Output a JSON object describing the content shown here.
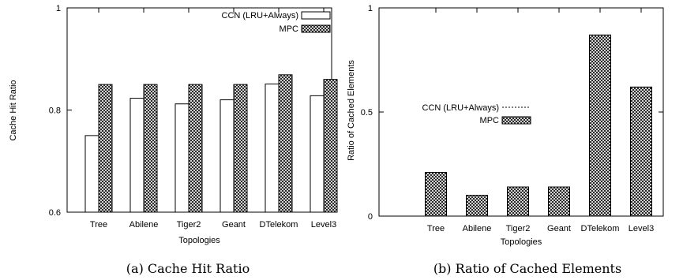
{
  "colors": {
    "axis": "#000000",
    "bar_fill": "#ffffff",
    "hatch": "#000000"
  },
  "chart_data": [
    {
      "type": "bar",
      "caption": "(a) Cache Hit Ratio",
      "xlabel": "Topologies",
      "ylabel": "Cache Hit Ratio",
      "categories": [
        "Tree",
        "Abilene",
        "Tiger2",
        "Geant",
        "DTelekom",
        "Level3"
      ],
      "ylim": [
        0.6,
        1
      ],
      "yticks": [
        0.6,
        0.8,
        1
      ],
      "ytick_labels": [
        "0.6",
        "0.8",
        "1"
      ],
      "legend_position": "top-right",
      "series": [
        {
          "name": "CCN (LRU+Always)",
          "style": "white",
          "values": [
            0.75,
            0.823,
            0.812,
            0.82,
            0.851,
            0.828
          ]
        },
        {
          "name": "MPC",
          "style": "hatched",
          "values": [
            0.85,
            0.85,
            0.85,
            0.85,
            0.869,
            0.86
          ]
        }
      ]
    },
    {
      "type": "bar",
      "caption": "(b) Ratio of Cached Elements",
      "xlabel": "Topologies",
      "ylabel": "Ratio of Cached Elements",
      "categories": [
        "Tree",
        "Abilene",
        "Tiger2",
        "Geant",
        "DTelekom",
        "Level3"
      ],
      "ylim": [
        0,
        1.0
      ],
      "yticks": [
        0,
        0.5,
        1
      ],
      "ytick_labels": [
        "0",
        "0.5",
        "1"
      ],
      "legend_position": "center-left",
      "series": [
        {
          "name": "CCN (LRU+Always)",
          "style": "dashed-line",
          "values": [
            1,
            1,
            1,
            1,
            1,
            1
          ]
        },
        {
          "name": "MPC",
          "style": "hatched",
          "values": [
            0.21,
            0.1,
            0.14,
            0.14,
            0.87,
            0.62
          ]
        }
      ]
    }
  ]
}
